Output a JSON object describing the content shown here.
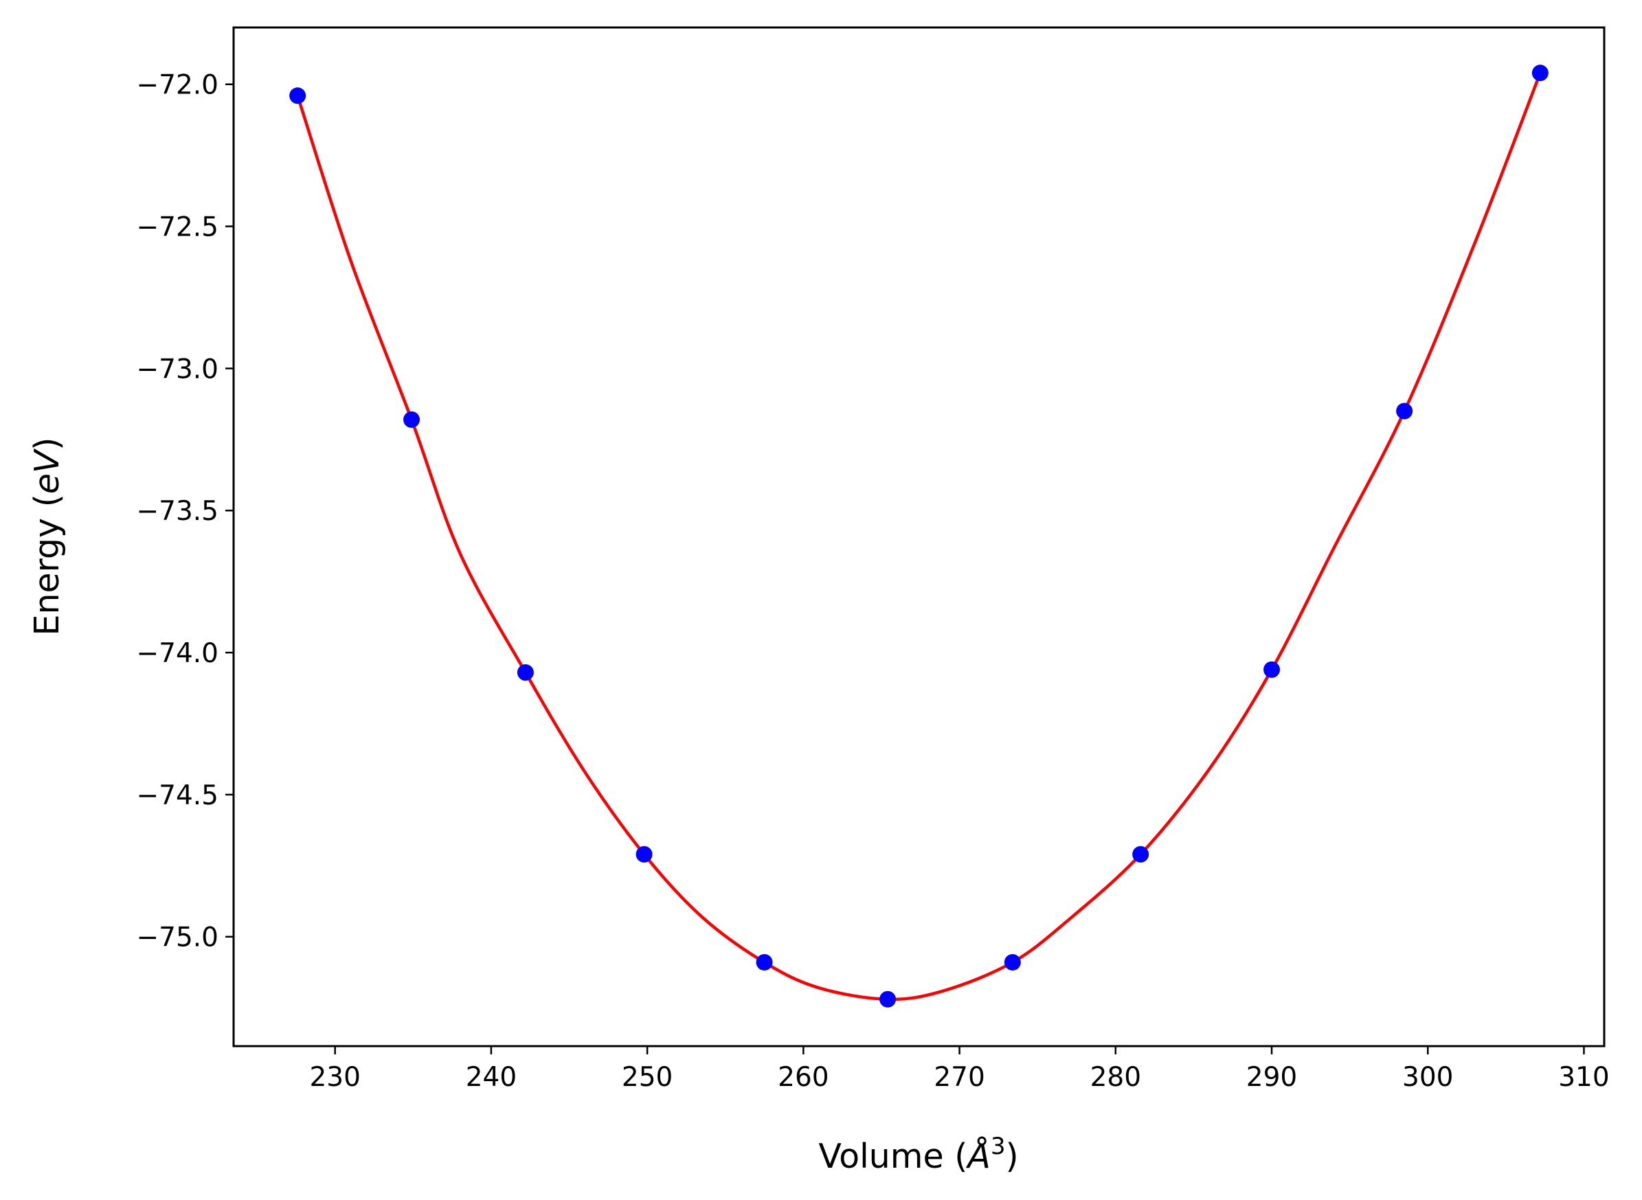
{
  "colors": {
    "fit_line": "#ff0000",
    "points": "#0000ff",
    "axes": "#000000",
    "background": "#ffffff"
  },
  "chart_data": {
    "type": "scatter",
    "title": "",
    "xlabel": {
      "prefix": "Volume (",
      "symbol": "Å",
      "superscript": "3",
      "suffix": ")"
    },
    "ylabel": {
      "prefix": "Energy (",
      "unit": "eV",
      "suffix": ")"
    },
    "xlim": [
      223.5,
      311.3
    ],
    "ylim": [
      -75.385,
      -71.8
    ],
    "xticks": [
      230,
      240,
      250,
      260,
      270,
      280,
      290,
      300,
      310
    ],
    "xtick_labels": [
      "230",
      "240",
      "250",
      "260",
      "270",
      "280",
      "290",
      "300",
      "310"
    ],
    "yticks": [
      -72.0,
      -72.5,
      -73.0,
      -73.5,
      -74.0,
      -74.5,
      -75.0
    ],
    "ytick_labels": [
      "−72.0",
      "−72.5",
      "−73.0",
      "−73.5",
      "−74.0",
      "−74.5",
      "−75.0"
    ],
    "grid": false,
    "legend": "none",
    "series": [
      {
        "kind": "points",
        "marker": "circle",
        "x": [
          227.6,
          234.9,
          242.2,
          249.8,
          257.5,
          265.4,
          273.4,
          281.6,
          290.0,
          298.5,
          307.2
        ],
        "y": [
          -72.04,
          -73.18,
          -74.07,
          -74.71,
          -75.09,
          -75.22,
          -75.09,
          -74.71,
          -74.06,
          -73.15,
          -71.96
        ]
      },
      {
        "kind": "fit-line",
        "x": [
          227.6,
          231.0,
          234.9,
          238.0,
          242.2,
          246.0,
          249.8,
          253.5,
          257.5,
          261.0,
          265.4,
          269.0,
          273.4,
          277.0,
          281.6,
          286.0,
          290.0,
          294.0,
          298.5,
          303.0,
          307.2
        ],
        "y": [
          -72.04,
          -72.62,
          -73.18,
          -73.65,
          -74.07,
          -74.42,
          -74.71,
          -74.93,
          -75.09,
          -75.18,
          -75.22,
          -75.19,
          -75.09,
          -74.94,
          -74.71,
          -74.41,
          -74.06,
          -73.63,
          -73.15,
          -72.56,
          -71.96
        ]
      }
    ]
  }
}
